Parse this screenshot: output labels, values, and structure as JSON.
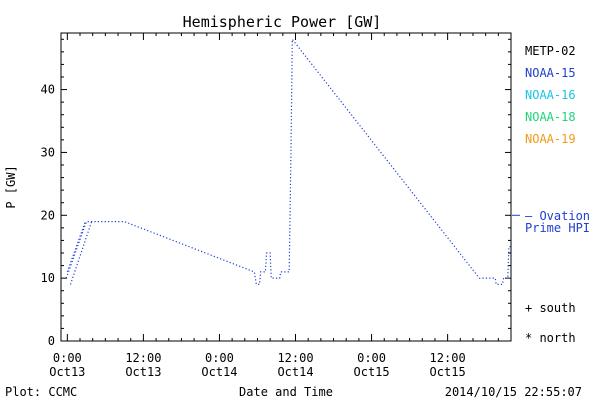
{
  "chart_data": {
    "type": "line",
    "title": "Hemispheric Power [GW]",
    "xlabel": "Date and Time",
    "ylabel": "P [GW]",
    "ylim": [
      0,
      49
    ],
    "xlim": [
      "2014-10-12T23:00",
      "2014-10-15T22:00"
    ],
    "yticks": [
      0,
      10,
      20,
      30,
      40
    ],
    "xticks": [
      {
        "line1": "0:00",
        "line2": "Oct13"
      },
      {
        "line1": "12:00",
        "line2": "Oct13"
      },
      {
        "line1": "0:00",
        "line2": "Oct14"
      },
      {
        "line1": "12:00",
        "line2": "Oct14"
      },
      {
        "line1": "0:00",
        "line2": "Oct15"
      },
      {
        "line1": "12:00",
        "line2": "Oct15"
      }
    ],
    "xtick_times": [
      "2014-10-13T00:00",
      "2014-10-13T12:00",
      "2014-10-14T00:00",
      "2014-10-14T12:00",
      "2014-10-15T00:00",
      "2014-10-15T12:00"
    ],
    "grid": false,
    "legend_position": "right",
    "series": [
      {
        "name": "NOAA-15",
        "color": "#1f3fd0",
        "style": "dotted",
        "points": [
          {
            "t": "2014-10-12T23:50",
            "v": 10
          },
          {
            "t": "2014-10-13T03:00",
            "v": 19
          },
          {
            "t": "2014-10-13T09:00",
            "v": 19
          },
          {
            "t": "2014-10-14T05:30",
            "v": 11
          },
          {
            "t": "2014-10-14T05:50",
            "v": 9
          },
          {
            "t": "2014-10-14T06:20",
            "v": 9
          },
          {
            "t": "2014-10-14T06:30",
            "v": 11
          },
          {
            "t": "2014-10-14T07:15",
            "v": 11
          },
          {
            "t": "2014-10-14T07:25",
            "v": 14
          },
          {
            "t": "2014-10-14T08:00",
            "v": 14
          },
          {
            "t": "2014-10-14T08:10",
            "v": 10
          },
          {
            "t": "2014-10-14T09:30",
            "v": 10
          },
          {
            "t": "2014-10-14T09:40",
            "v": 11
          },
          {
            "t": "2014-10-14T11:00",
            "v": 11
          },
          {
            "t": "2014-10-14T11:15",
            "v": 28
          },
          {
            "t": "2014-10-14T11:30",
            "v": 48
          },
          {
            "t": "2014-10-15T17:00",
            "v": 10
          },
          {
            "t": "2014-10-15T19:30",
            "v": 10
          },
          {
            "t": "2014-10-15T19:40",
            "v": 9
          },
          {
            "t": "2014-10-15T20:40",
            "v": 9
          },
          {
            "t": "2014-10-15T20:50",
            "v": 10
          },
          {
            "t": "2014-10-15T21:30",
            "v": 10
          },
          {
            "t": "2014-10-15T21:40",
            "v": 15
          },
          {
            "t": "2014-10-15T22:00",
            "v": 15
          }
        ]
      },
      {
        "name": "NOAA-15",
        "color": "#1f3fd0",
        "style": "dotted",
        "points": [
          {
            "t": "2014-10-13T00:30",
            "v": 9
          },
          {
            "t": "2014-10-13T03:50",
            "v": 19
          }
        ]
      },
      {
        "name": "NOAA-15",
        "color": "#1f3fd0",
        "style": "dotted",
        "points": [
          {
            "t": "2014-10-13T00:00",
            "v": 11
          },
          {
            "t": "2014-10-13T02:50",
            "v": 19
          }
        ]
      }
    ],
    "reference": {
      "label": "Ovation Prime HPI",
      "marker": "— –",
      "value": 20,
      "color": "#1f3fd0"
    }
  },
  "legend": [
    {
      "label": "METP-02",
      "color": "#000000"
    },
    {
      "label": "NOAA-15",
      "color": "#1f3fd0"
    },
    {
      "label": "NOAA-16",
      "color": "#19c3e6"
    },
    {
      "label": "NOAA-18",
      "color": "#1ed47a"
    },
    {
      "label": "NOAA-19",
      "color": "#f29a1a"
    }
  ],
  "ovation": {
    "line1": "— Ovation",
    "line2": "Prime HPI",
    "color": "#1f3fd0"
  },
  "symbols": [
    {
      "label": "+ south"
    },
    {
      "label": "* north"
    }
  ],
  "footer": {
    "left": "Plot: CCMC",
    "right": "2014/10/15 22:55:07"
  }
}
